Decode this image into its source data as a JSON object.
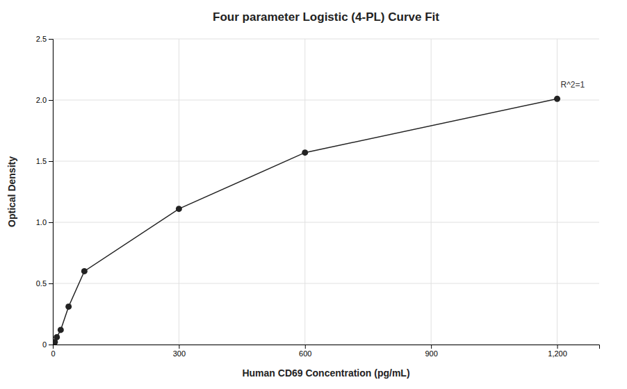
{
  "chart_data": {
    "type": "line",
    "title": "Four parameter Logistic (4-PL) Curve Fit",
    "xlabel": "Human CD69 Concentration (pg/mL)",
    "ylabel": "Optical Density",
    "x": [
      4.69,
      9.38,
      18.75,
      37.5,
      75,
      300,
      600,
      1200
    ],
    "values": [
      0.02,
      0.06,
      0.12,
      0.31,
      0.6,
      1.11,
      1.57,
      2.01
    ],
    "color": "#222222",
    "marker": "circle",
    "xlim": [
      0,
      1300
    ],
    "xticks": [
      0,
      300,
      600,
      900,
      {
        "value": 1200,
        "label": "1,200"
      }
    ],
    "ylim": [
      0,
      2.5
    ],
    "yticks": [
      0,
      0.5,
      {
        "value": 1.0,
        "label": "1.0"
      },
      1.5,
      {
        "value": 2.0,
        "label": "2.0"
      },
      2.5
    ],
    "grid": true,
    "annotations": [
      {
        "text": "R^2=1",
        "x": 1205,
        "y": 2.09
      }
    ]
  }
}
